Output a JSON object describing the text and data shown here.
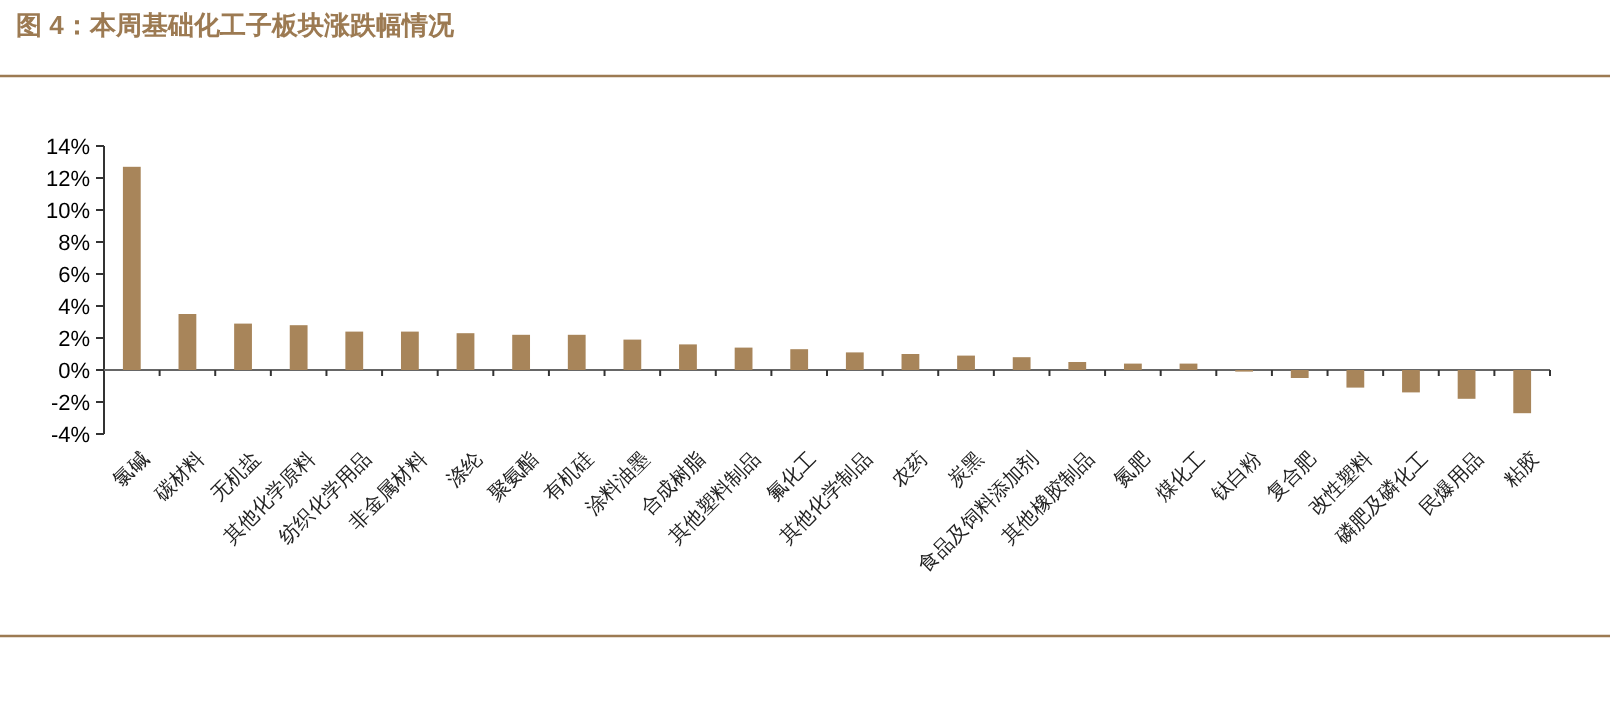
{
  "chart_data": {
    "type": "bar",
    "title": "图 4：本周基础化工子板块涨跌幅情况",
    "categories": [
      "氯碱",
      "碳材料",
      "无机盐",
      "其他化学原料",
      "纺织化学用品",
      "非金属材料",
      "涤纶",
      "聚氨酯",
      "有机硅",
      "涂料油墨",
      "合成树脂",
      "其他塑料制品",
      "氟化工",
      "其他化学制品",
      "农药",
      "炭黑",
      "食品及饲料添加剂",
      "其他橡胶制品",
      "氮肥",
      "煤化工",
      "钛白粉",
      "复合肥",
      "改性塑料",
      "磷肥及磷化工",
      "民爆用品",
      "粘胶"
    ],
    "values": [
      12.7,
      3.5,
      2.9,
      2.8,
      2.4,
      2.4,
      2.3,
      2.2,
      2.2,
      1.9,
      1.6,
      1.4,
      1.3,
      1.1,
      1.0,
      0.9,
      0.8,
      0.5,
      0.4,
      0.4,
      -0.1,
      -0.5,
      -1.1,
      -1.4,
      -1.8,
      -2.7
    ],
    "color": "#a8855a",
    "ylim": [
      -4,
      14
    ],
    "yticks": [
      {
        "value": -4,
        "label": "-4%"
      },
      {
        "value": -2,
        "label": "-2%"
      },
      {
        "value": 0,
        "label": "0%"
      },
      {
        "value": 2,
        "label": "2%"
      },
      {
        "value": 4,
        "label": "4%"
      },
      {
        "value": 6,
        "label": "6%"
      },
      {
        "value": 8,
        "label": "8%"
      },
      {
        "value": 10,
        "label": "10%"
      },
      {
        "value": 12,
        "label": "12%"
      },
      {
        "value": 14,
        "label": "14%"
      }
    ],
    "tick_labels": true
  }
}
